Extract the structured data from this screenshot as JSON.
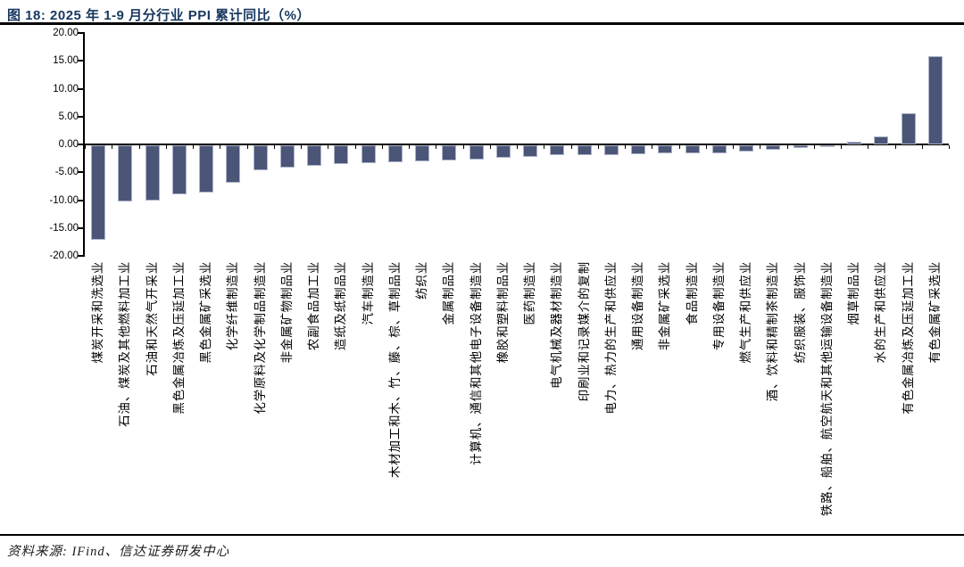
{
  "header": {
    "title": "图 18: 2025 年 1-9 月分行业 PPI 累计同比（%）"
  },
  "footer": {
    "source": "资料来源: IFind、信达证券研发中心"
  },
  "chart_data": {
    "type": "bar",
    "title": "2025 年 1-9 月分行业 PPI 累计同比（%）",
    "unit": "%",
    "ylabel": "",
    "xlabel": "",
    "ylim": [
      -20,
      20
    ],
    "ytick_interval": 5,
    "ytick_labels": [
      "20.00",
      "15.00",
      "10.00",
      "5.00",
      "0.00",
      "-5.00",
      "-10.00",
      "-15.00",
      "-20.00"
    ],
    "grid": false,
    "legend_position": "none",
    "bar_color": "#4A5578",
    "bar_edge_color": "#AEB4C8",
    "axis_color": "#000000",
    "categories": [
      "煤炭开采和洗选业",
      "石油、煤炭及其他燃料加工业",
      "石油和天然气开采业",
      "黑色金属冶炼及压延加工业",
      "黑色金属矿采选业",
      "化学纤维制造业",
      "化学原料及化学制品制造业",
      "非金属矿物制品业",
      "农副食品加工业",
      "造纸及纸制品业",
      "汽车制造业",
      "木材加工和木、竹、藤、棕、草制品业",
      "纺织业",
      "金属制品业",
      "计算机、通信和其他电子设备制造业",
      "橡胶和塑料制品业",
      "医药制造业",
      "电气机械及器材制造业",
      "印刷业和记录媒介的复制",
      "电力、热力的生产和供应业",
      "通用设备制造业",
      "非金属矿采选业",
      "食品制造业",
      "专用设备制造业",
      "燃气生产和供应业",
      "酒、饮料和精制茶制造业",
      "纺织服装、服饰业",
      "铁路、船舶、航空航天和其他运输设备制造业",
      "烟草制品业",
      "水的生产和供应业",
      "有色金属冶炼及压延加工业",
      "有色金属矿采选业"
    ],
    "values": [
      -16.9,
      -10.1,
      -9.9,
      -8.8,
      -8.4,
      -6.7,
      -4.5,
      -4.0,
      -3.6,
      -3.4,
      -3.2,
      -3.0,
      -2.8,
      -2.7,
      -2.6,
      -2.2,
      -2.0,
      -1.8,
      -1.7,
      -1.7,
      -1.6,
      -1.5,
      -1.5,
      -1.4,
      -1.1,
      -0.8,
      -0.4,
      -0.1,
      0.5,
      1.4,
      5.6,
      15.8
    ]
  }
}
